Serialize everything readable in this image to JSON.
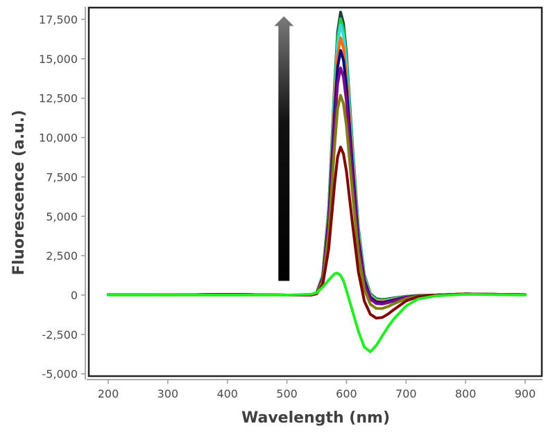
{
  "chart_data": {
    "type": "line",
    "title": "",
    "xlabel": "Wavelength (nm)",
    "ylabel": "Fluorescence (a.u.)",
    "xlim": [
      164,
      928
    ],
    "ylim": [
      -5230,
      18280
    ],
    "grid": false,
    "legend": "none",
    "x_ticks": [
      200,
      300,
      400,
      500,
      600,
      700,
      800,
      900
    ],
    "x_tick_labels": [
      "200",
      "300",
      "400",
      "500",
      "600",
      "700",
      "800",
      "900"
    ],
    "y_ticks": [
      -5000,
      -2500,
      0,
      2500,
      5000,
      7500,
      10000,
      12500,
      15000,
      17500
    ],
    "y_tick_labels": [
      "-5,000",
      "-2,500",
      "0",
      "2,500",
      "5,000",
      "7,500",
      "10,000",
      "12,500",
      "15,000",
      "17,500"
    ],
    "x": [
      200,
      300,
      400,
      500,
      540,
      550,
      560,
      570,
      580,
      585,
      590,
      595,
      600,
      610,
      620,
      630,
      640,
      650,
      660,
      670,
      680,
      700,
      720,
      750,
      800,
      900
    ],
    "series": [
      {
        "color": "#1e3c3c",
        "values": [
          20,
          10,
          40,
          0,
          0,
          160,
          1260,
          5500,
          13370,
          16690,
          17960,
          17260,
          15350,
          9580,
          4300,
          1290,
          90,
          -230,
          -284,
          -240,
          -182,
          -75,
          -20,
          0,
          70,
          20
        ]
      },
      {
        "color": "#22cc44",
        "values": [
          20,
          10,
          40,
          0,
          0,
          158,
          1230,
          5380,
          13070,
          16320,
          17550,
          16870,
          15000,
          9340,
          4170,
          1220,
          40,
          -280,
          -331,
          -280,
          -212,
          -88,
          -23,
          0,
          70,
          20
        ]
      },
      {
        "color": "#33dddd",
        "values": [
          20,
          10,
          40,
          0,
          0,
          155,
          1200,
          5250,
          12770,
          15940,
          17150,
          16470,
          14640,
          9110,
          4040,
          1140,
          -20,
          -330,
          -378,
          -320,
          -243,
          -100,
          -26,
          -2,
          70,
          20
        ]
      },
      {
        "color": "#ff6a1a",
        "values": [
          20,
          10,
          40,
          0,
          0,
          148,
          1140,
          5010,
          12170,
          15190,
          16340,
          15690,
          13940,
          8650,
          3810,
          1030,
          -80,
          -380,
          -426,
          -360,
          -273,
          -113,
          -30,
          -2,
          70,
          20
        ]
      },
      {
        "color": "#0a0a80",
        "values": [
          20,
          10,
          40,
          0,
          0,
          140,
          1090,
          4760,
          11570,
          14440,
          15530,
          14910,
          13240,
          8200,
          3580,
          930,
          -150,
          -440,
          -473,
          -400,
          -304,
          -125,
          -33,
          -2,
          70,
          20
        ]
      },
      {
        "color": "#7a0a8a",
        "values": [
          20,
          10,
          40,
          0,
          0,
          131,
          1010,
          4420,
          10750,
          13410,
          14420,
          13840,
          12280,
          7570,
          3250,
          750,
          -260,
          -540,
          -568,
          -480,
          -364,
          -150,
          -40,
          -2,
          70,
          20
        ]
      },
      {
        "color": "#7f7f10",
        "values": [
          20,
          10,
          40,
          0,
          0,
          115,
          890,
          3890,
          9460,
          11810,
          12680,
          12150,
          10750,
          6530,
          2640,
          370,
          -580,
          -850,
          -851,
          -720,
          -546,
          -225,
          -59,
          -4,
          70,
          20
        ]
      },
      {
        "color": "#800000",
        "values": [
          20,
          10,
          40,
          0,
          0,
          80,
          656,
          2894,
          7043,
          8774,
          9397,
          8956,
          7852,
          4559,
          1480,
          -384,
          -1217,
          -1462,
          -1419,
          -1200,
          -910,
          -375,
          -99,
          -6,
          70,
          20
        ]
      },
      {
        "color": "#22ee22",
        "values": [
          0,
          0,
          0,
          0,
          50,
          150,
          500,
          950,
          1350,
          1400,
          1250,
          900,
          300,
          -1000,
          -2300,
          -3300,
          -3600,
          -3200,
          -2600,
          -2000,
          -1500,
          -700,
          -250,
          -50,
          50,
          0
        ]
      }
    ],
    "annotations": [
      {
        "type": "arrow",
        "direction": "up",
        "x": 495,
        "y_from": 900,
        "y_to": 17700
      }
    ]
  }
}
